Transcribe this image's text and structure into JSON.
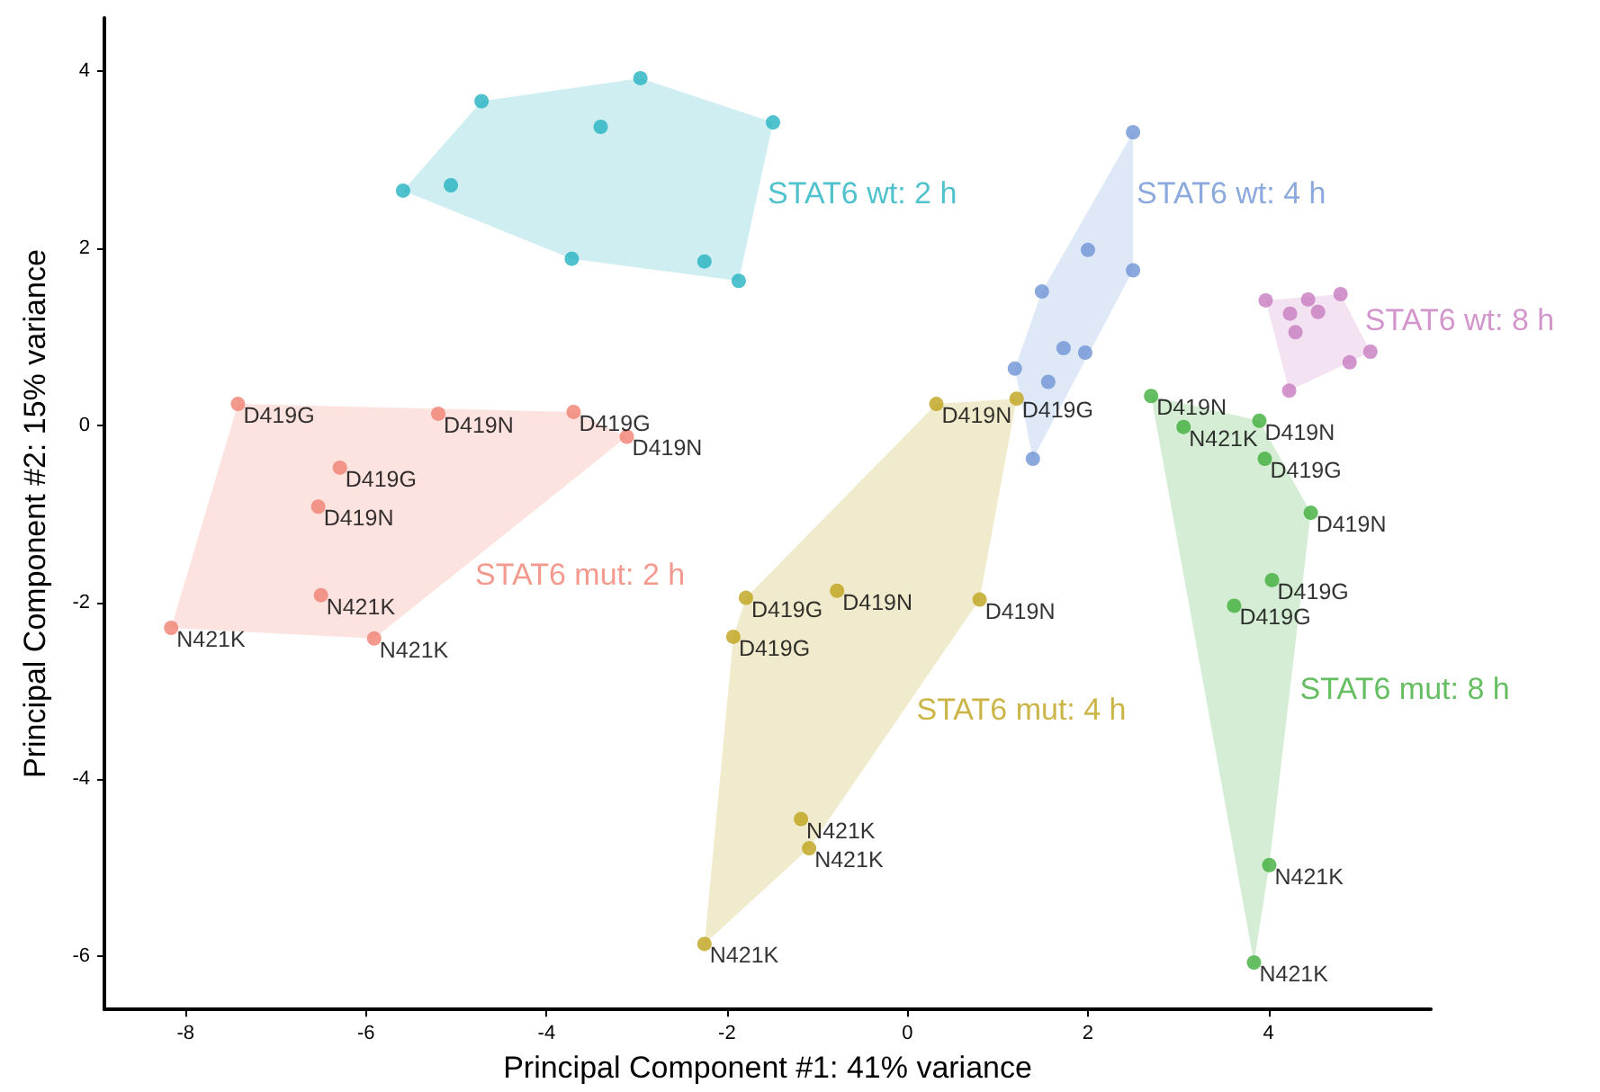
{
  "chart_data": {
    "type": "scatter",
    "xlabel": "Principal Component #1: 41% variance",
    "ylabel": "Principal Component #2: 15% variance",
    "xlim": [
      -8.9,
      5.8
    ],
    "ylim": [
      -6.6,
      4.6
    ],
    "xticks": [
      -8,
      -6,
      -4,
      -2,
      0,
      2,
      4
    ],
    "yticks": [
      -6,
      -4,
      -2,
      0,
      2,
      4
    ],
    "grid": false,
    "legend": false,
    "marker": "circle",
    "series": [
      {
        "name": "STAT6 wt: 2 h",
        "color": "#24b3c0",
        "x": [
          -4.72,
          -2.96,
          -1.49,
          -3.4,
          -5.59,
          -5.06,
          -3.72,
          -2.25,
          -1.87
        ],
        "values": [
          3.66,
          3.92,
          3.42,
          3.37,
          2.65,
          2.71,
          1.88,
          1.85,
          1.63
        ]
      },
      {
        "name": "STAT6 wt: 4 h",
        "color": "#6f94d6",
        "x": [
          2.5,
          2.0,
          2.5,
          1.49,
          1.73,
          1.97,
          1.19,
          1.56,
          1.39
        ],
        "values": [
          3.31,
          1.98,
          1.75,
          1.51,
          0.87,
          0.82,
          0.64,
          0.49,
          -0.38
        ]
      },
      {
        "name": "STAT6 wt: 8 h",
        "color": "#c77cbf",
        "x": [
          3.97,
          4.44,
          4.8,
          4.24,
          4.55,
          4.3,
          5.13,
          4.9,
          4.23
        ],
        "values": [
          1.41,
          1.42,
          1.48,
          1.26,
          1.28,
          1.05,
          0.83,
          0.71,
          0.39
        ]
      },
      {
        "name": "STAT6 mut: 2 h",
        "color": "#f07f72",
        "x": [
          -7.42,
          -5.2,
          -3.7,
          -3.11,
          -6.29,
          -6.53,
          -6.5,
          -8.16,
          -5.91
        ],
        "values": [
          0.24,
          0.13,
          0.15,
          -0.13,
          -0.48,
          -0.92,
          -1.92,
          -2.29,
          -2.41
        ]
      },
      {
        "name": "STAT6 mut: 4 h",
        "color": "#bfa21a",
        "x": [
          -1.79,
          -0.78,
          -1.93,
          -1.18,
          -1.09,
          -2.25,
          0.32,
          1.21,
          0.8
        ],
        "values": [
          -1.95,
          -1.87,
          -2.39,
          -4.45,
          -4.78,
          -5.86,
          0.24,
          0.3,
          -1.97
        ]
      },
      {
        "name": "STAT6 mut: 8 h",
        "color": "#3fae3a",
        "x": [
          2.7,
          3.06,
          3.9,
          3.96,
          4.47,
          4.04,
          3.62,
          4.01,
          3.84
        ],
        "values": [
          0.33,
          -0.02,
          0.05,
          -0.38,
          -0.99,
          -1.75,
          -2.04,
          -4.97,
          -6.07
        ]
      }
    ],
    "annotations": [
      {
        "text": "D419G",
        "x": -7.42,
        "y": 0.24
      },
      {
        "text": "D419N",
        "x": -5.2,
        "y": 0.13
      },
      {
        "text": "D419G",
        "x": -3.7,
        "y": 0.15
      },
      {
        "text": "D419N",
        "x": -3.11,
        "y": -0.13
      },
      {
        "text": "D419G",
        "x": -6.29,
        "y": -0.48
      },
      {
        "text": "D419N",
        "x": -6.53,
        "y": -0.92
      },
      {
        "text": "N421K",
        "x": -6.5,
        "y": -1.92
      },
      {
        "text": "N421K",
        "x": -8.16,
        "y": -2.29
      },
      {
        "text": "N421K",
        "x": -5.91,
        "y": -2.41
      },
      {
        "text": "D419G",
        "x": -1.79,
        "y": -1.95
      },
      {
        "text": "D419N",
        "x": -0.78,
        "y": -1.87
      },
      {
        "text": "D419G",
        "x": -1.93,
        "y": -2.39
      },
      {
        "text": "N421K",
        "x": -1.18,
        "y": -4.45
      },
      {
        "text": "N421K",
        "x": -1.09,
        "y": -4.78
      },
      {
        "text": "N421K",
        "x": -2.25,
        "y": -5.86
      },
      {
        "text": "D419N",
        "x": 0.32,
        "y": 0.24
      },
      {
        "text": "D419G",
        "x": 1.21,
        "y": 0.3
      },
      {
        "text": "D419N",
        "x": 0.8,
        "y": -1.97
      },
      {
        "text": "D419N",
        "x": 2.7,
        "y": 0.33
      },
      {
        "text": "N421K",
        "x": 3.06,
        "y": -0.02
      },
      {
        "text": "D419N",
        "x": 3.9,
        "y": 0.05
      },
      {
        "text": "D419G",
        "x": 3.96,
        "y": -0.38
      },
      {
        "text": "D419N",
        "x": 4.47,
        "y": -0.99
      },
      {
        "text": "D419G",
        "x": 4.04,
        "y": -1.75
      },
      {
        "text": "D419G",
        "x": 3.62,
        "y": -2.04
      },
      {
        "text": "N421K",
        "x": 4.01,
        "y": -4.97
      },
      {
        "text": "N421K",
        "x": 3.84,
        "y": -6.07
      }
    ]
  }
}
